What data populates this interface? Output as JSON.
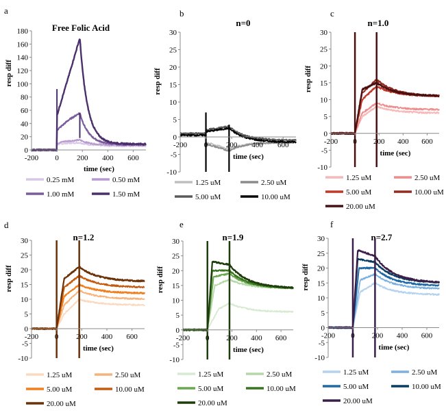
{
  "figure": {
    "panels": [
      "a",
      "b",
      "c",
      "d",
      "e",
      "f"
    ]
  },
  "chart_data": [
    {
      "id": "a",
      "type": "line",
      "panel_letter": "a",
      "title": "Free Folic Acid",
      "xlabel": "time (sec)",
      "ylabel": "resp diff",
      "xlim": [
        -200,
        700
      ],
      "ylim": [
        0,
        180
      ],
      "xticks": [
        -200,
        0,
        200,
        400,
        600
      ],
      "yticks": [
        0,
        20,
        40,
        60,
        80,
        100,
        120,
        140,
        160,
        180
      ],
      "grid": false,
      "legend_position": "bottom",
      "legend_cols": 2,
      "kinetics": {
        "inj_start": 0,
        "inj_end": 180,
        "spike_at_start": true,
        "spike_at_end": true
      },
      "series": [
        {
          "name": "0.25 mM",
          "color": "#d8c8e6",
          "width": 1.8,
          "baseline": 0,
          "jump": 8,
          "rise": [
            [
              0,
              8
            ],
            [
              60,
              10
            ],
            [
              180,
              11
            ]
          ],
          "decay_to": 6,
          "decay_tau": 90
        },
        {
          "name": "0.50 mM",
          "color": "#b89ad0",
          "width": 1.8,
          "baseline": 0,
          "jump": 10,
          "rise": [
            [
              0,
              10
            ],
            [
              60,
              13
            ],
            [
              180,
              15
            ]
          ],
          "decay_to": 7,
          "decay_tau": 90
        },
        {
          "name": "1.00 mM",
          "color": "#7b5c9d",
          "width": 2.2,
          "baseline": 0,
          "jump": 30,
          "rise": [
            [
              0,
              30
            ],
            [
              90,
              45
            ],
            [
              180,
              56
            ]
          ],
          "decay_to": 8,
          "decay_tau": 70
        },
        {
          "name": "1.50 mM",
          "color": "#4a2f6b",
          "width": 2.4,
          "baseline": 0,
          "jump": 52,
          "rise": [
            [
              0,
              52
            ],
            [
              90,
              110
            ],
            [
              180,
              169
            ]
          ],
          "decay_to": 9,
          "decay_tau": 60
        }
      ]
    },
    {
      "id": "b",
      "type": "line",
      "panel_letter": "b",
      "title": "n=0",
      "xlabel": "time (sec)",
      "ylabel": "resp diff",
      "xlim": [
        -200,
        700
      ],
      "ylim": [
        -10,
        30
      ],
      "xticks": [
        -200,
        0,
        200,
        400,
        600
      ],
      "yticks": [
        -10,
        -5,
        0,
        5,
        10,
        15,
        20,
        25,
        30
      ],
      "grid": false,
      "legend_position": "bottom",
      "legend_cols": 2,
      "kinetics": {
        "inj_start": 0,
        "inj_end": 180,
        "spike_at_start": true,
        "spike_at_end": true
      },
      "series": [
        {
          "name": "1.25 uM",
          "color": "#bfbfbf",
          "width": 1.6,
          "baseline": 0.5,
          "jump": -1.5,
          "rise": [
            [
              0,
              -1.5
            ],
            [
              180,
              -3.5
            ]
          ],
          "decay_to": -1.5,
          "decay_tau": 120
        },
        {
          "name": "2.50 uM",
          "color": "#8c8c8c",
          "width": 1.6,
          "baseline": 0.8,
          "jump": -2,
          "rise": [
            [
              0,
              -2
            ],
            [
              180,
              -4
            ]
          ],
          "decay_to": -1.5,
          "decay_tau": 120
        },
        {
          "name": "5.00 uM",
          "color": "#595959",
          "width": 1.8,
          "baseline": 1,
          "jump": 2,
          "rise": [
            [
              0,
              2
            ],
            [
              180,
              3
            ]
          ],
          "decay_to": -1,
          "decay_tau": 120
        },
        {
          "name": "10.00 uM",
          "color": "#000000",
          "width": 1.8,
          "baseline": 0.5,
          "jump": 1.5,
          "rise": [
            [
              0,
              1.5
            ],
            [
              180,
              2.5
            ]
          ],
          "decay_to": -1.5,
          "decay_tau": 120
        }
      ]
    },
    {
      "id": "c",
      "type": "line",
      "panel_letter": "c",
      "title": "n=1.0",
      "xlabel": "time (sec)",
      "ylabel": "resp diff",
      "xlim": [
        -200,
        700
      ],
      "ylim": [
        -10,
        30
      ],
      "xticks": [
        -200,
        0,
        200,
        400,
        600
      ],
      "yticks": [
        -10,
        -5,
        0,
        5,
        10,
        15,
        20,
        25,
        30
      ],
      "grid": false,
      "legend_position": "bottom",
      "legend_cols": 2,
      "kinetics": {
        "inj_start": 0,
        "inj_end": 180,
        "spike_at_start": true,
        "spike_at_end": true
      },
      "series": [
        {
          "name": "1.25 uM",
          "color": "#f6b8b8",
          "width": 1.8,
          "baseline": 0,
          "jump": 0,
          "rise": [
            [
              0,
              0
            ],
            [
              60,
              5
            ],
            [
              180,
              8
            ]
          ],
          "decay_to": 6,
          "decay_tau": 150
        },
        {
          "name": "2.50 uM",
          "color": "#ef8c8c",
          "width": 1.8,
          "baseline": 0,
          "jump": 0,
          "rise": [
            [
              0,
              0
            ],
            [
              60,
              6
            ],
            [
              180,
              9
            ]
          ],
          "decay_to": 7,
          "decay_tau": 150
        },
        {
          "name": "5.00 uM",
          "color": "#c0392b",
          "width": 2,
          "baseline": 0,
          "jump": 0,
          "rise": [
            [
              0,
              0
            ],
            [
              60,
              10
            ],
            [
              180,
              14
            ]
          ],
          "decay_to": 11,
          "decay_tau": 150
        },
        {
          "name": "10.00 uM",
          "color": "#922b21",
          "width": 2,
          "baseline": 0,
          "jump": 0,
          "rise": [
            [
              0,
              0
            ],
            [
              60,
              12
            ],
            [
              180,
              16
            ]
          ],
          "decay_to": 11,
          "decay_tau": 150
        },
        {
          "name": "20.00 uM",
          "color": "#4a1010",
          "width": 2.2,
          "baseline": 0,
          "jump": 0,
          "rise": [
            [
              0,
              0
            ],
            [
              60,
              13
            ],
            [
              180,
              15
            ]
          ],
          "decay_to": 11,
          "decay_tau": 150
        }
      ]
    },
    {
      "id": "d",
      "type": "line",
      "panel_letter": "d",
      "title": "n=1.2",
      "xlabel": "time (sec)",
      "ylabel": "resp diff",
      "xlim": [
        -200,
        700
      ],
      "ylim": [
        -10,
        30
      ],
      "xticks": [
        -200,
        0,
        200,
        400,
        600
      ],
      "yticks": [
        -10,
        -5,
        0,
        5,
        10,
        15,
        20,
        25,
        30
      ],
      "grid": false,
      "legend_position": "bottom",
      "legend_cols": 2,
      "kinetics": {
        "inj_start": 0,
        "inj_end": 180,
        "spike_at_start": true,
        "spike_at_end": true
      },
      "series": [
        {
          "name": "1.25 uM",
          "color": "#fbd9bf",
          "width": 1.8,
          "baseline": 0,
          "jump": 0,
          "rise": [
            [
              0,
              0
            ],
            [
              60,
              5
            ],
            [
              180,
              10
            ]
          ],
          "decay_to": 8,
          "decay_tau": 150
        },
        {
          "name": "2.50 uM",
          "color": "#f7b27a",
          "width": 1.8,
          "baseline": 0,
          "jump": 0,
          "rise": [
            [
              0,
              0
            ],
            [
              60,
              8
            ],
            [
              180,
              13
            ]
          ],
          "decay_to": 10,
          "decay_tau": 150
        },
        {
          "name": "5.00 uM",
          "color": "#f07f1e",
          "width": 2,
          "baseline": 0,
          "jump": 0,
          "rise": [
            [
              0,
              0
            ],
            [
              60,
              11
            ],
            [
              180,
              15
            ]
          ],
          "decay_to": 12,
          "decay_tau": 150
        },
        {
          "name": "10.00 uM",
          "color": "#c55a11",
          "width": 2,
          "baseline": 0,
          "jump": 0,
          "rise": [
            [
              0,
              0
            ],
            [
              60,
              14
            ],
            [
              180,
              18
            ]
          ],
          "decay_to": 14,
          "decay_tau": 150
        },
        {
          "name": "20.00 uM",
          "color": "#6b3107",
          "width": 2.2,
          "baseline": 0,
          "jump": 0,
          "rise": [
            [
              0,
              0
            ],
            [
              60,
              17
            ],
            [
              180,
              21
            ]
          ],
          "decay_to": 16,
          "decay_tau": 150
        }
      ]
    },
    {
      "id": "e",
      "type": "line",
      "panel_letter": "e",
      "title": "n=1.9",
      "xlabel": "time (sec)",
      "ylabel": "resp diff",
      "xlim": [
        -200,
        700
      ],
      "ylim": [
        -10,
        30
      ],
      "xticks": [
        -200,
        0,
        200,
        400,
        600
      ],
      "yticks": [
        -10,
        -5,
        0,
        5,
        10,
        15,
        20,
        25,
        30
      ],
      "grid": false,
      "legend_position": "bottom",
      "legend_cols": 2,
      "kinetics": {
        "inj_start": 0,
        "inj_end": 180,
        "spike_at_start": true,
        "spike_at_end": true
      },
      "series": [
        {
          "name": "1.25 uM",
          "color": "#d9ead3",
          "width": 1.8,
          "baseline": 0,
          "jump": 0,
          "rise": [
            [
              0,
              0
            ],
            [
              90,
              7
            ],
            [
              180,
              9
            ]
          ],
          "decay_to": 6,
          "decay_tau": 150
        },
        {
          "name": "2.50 uM",
          "color": "#b6d7a8",
          "width": 1.8,
          "baseline": 0,
          "jump": 0,
          "rise": [
            [
              0,
              0
            ],
            [
              60,
              15
            ],
            [
              180,
              17
            ]
          ],
          "decay_to": 14,
          "decay_tau": 150
        },
        {
          "name": "5.00 uM",
          "color": "#6aa84f",
          "width": 2,
          "baseline": 0,
          "jump": 0,
          "rise": [
            [
              0,
              0
            ],
            [
              50,
              18
            ],
            [
              180,
              19
            ]
          ],
          "decay_to": 14,
          "decay_tau": 150
        },
        {
          "name": "10.00 uM",
          "color": "#38761d",
          "width": 2,
          "baseline": 0,
          "jump": 0,
          "rise": [
            [
              0,
              0
            ],
            [
              40,
              20
            ],
            [
              180,
              20
            ]
          ],
          "decay_to": 14,
          "decay_tau": 150
        },
        {
          "name": "20.00 uM",
          "color": "#1f3d0c",
          "width": 2.2,
          "baseline": 0,
          "jump": 0,
          "rise": [
            [
              0,
              0
            ],
            [
              40,
              23
            ],
            [
              180,
              22
            ]
          ],
          "decay_to": 14,
          "decay_tau": 150
        }
      ]
    },
    {
      "id": "f",
      "type": "line",
      "panel_letter": "f",
      "title": "n=2.7",
      "xlabel": "time (sec)",
      "ylabel": "resp diff",
      "xlim": [
        -200,
        700
      ],
      "ylim": [
        -10,
        30
      ],
      "xticks": [
        -200,
        0,
        200,
        400,
        600
      ],
      "yticks": [
        -10,
        -5,
        0,
        5,
        10,
        15,
        20,
        25,
        30
      ],
      "grid": false,
      "legend_position": "bottom",
      "legend_cols": 2,
      "kinetics": {
        "inj_start": 0,
        "inj_end": 180,
        "spike_at_start": true,
        "spike_at_end": true
      },
      "series": [
        {
          "name": "1.25 uM",
          "color": "#b4d2ee",
          "width": 1.8,
          "baseline": 0,
          "jump": 0,
          "rise": [
            [
              0,
              0
            ],
            [
              60,
              12
            ],
            [
              180,
              15
            ]
          ],
          "decay_to": 11,
          "decay_tau": 150
        },
        {
          "name": "2.50 uM",
          "color": "#7bb0e0",
          "width": 1.8,
          "baseline": 0,
          "jump": 0,
          "rise": [
            [
              0,
              0
            ],
            [
              60,
              16
            ],
            [
              180,
              18
            ]
          ],
          "decay_to": 13,
          "decay_tau": 150
        },
        {
          "name": "5.00 uM",
          "color": "#1f6aa5",
          "width": 2,
          "baseline": 0,
          "jump": 0,
          "rise": [
            [
              0,
              0
            ],
            [
              50,
              20
            ],
            [
              180,
              20
            ]
          ],
          "decay_to": 14,
          "decay_tau": 150
        },
        {
          "name": "10.00 uM",
          "color": "#0b3c61",
          "width": 2,
          "baseline": 0,
          "jump": 0,
          "rise": [
            [
              0,
              0
            ],
            [
              40,
              23
            ],
            [
              180,
              22
            ]
          ],
          "decay_to": 15,
          "decay_tau": 150
        },
        {
          "name": "20.00 uM",
          "color": "#3b1f4a",
          "width": 2.2,
          "baseline": 0,
          "jump": 0,
          "rise": [
            [
              0,
              0
            ],
            [
              40,
              26
            ],
            [
              180,
              24
            ]
          ],
          "decay_to": 15,
          "decay_tau": 150
        }
      ]
    }
  ]
}
